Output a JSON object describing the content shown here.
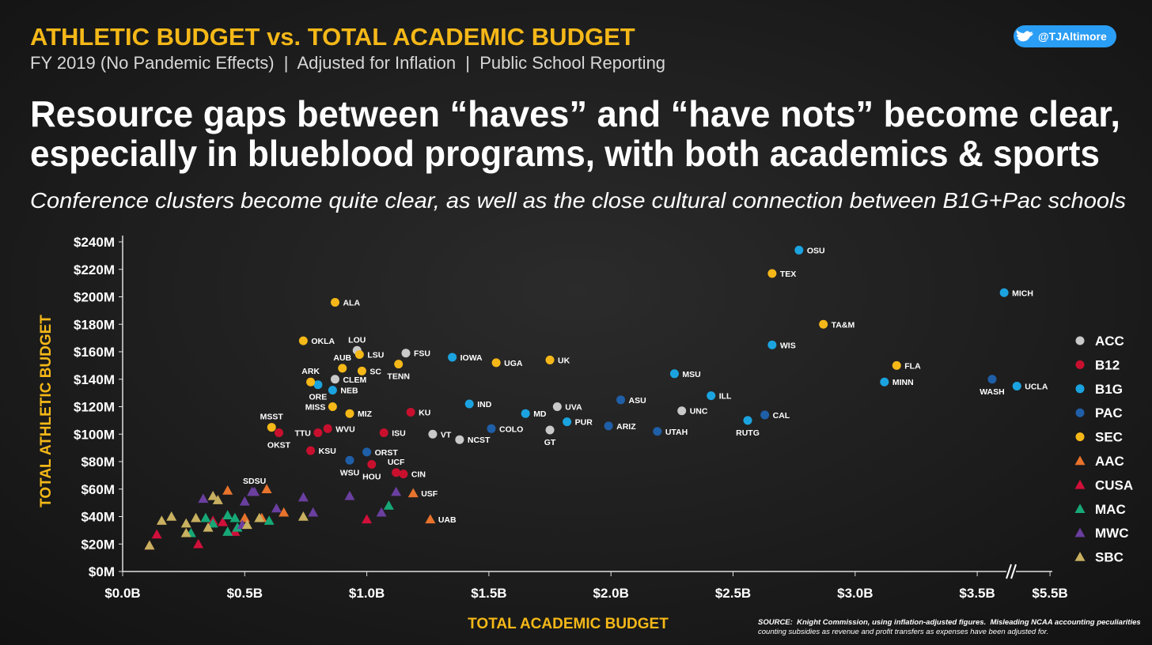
{
  "chart_data": {
    "type": "scatter",
    "title": "ATHLETIC BUDGET vs. TOTAL ACADEMIC BUDGET",
    "subtitle": "FY 2019 (No Pandemic Effects)  |  Adjusted for Inflation  |  Public School Reporting",
    "headline": [
      "Resource gaps between “haves” and “have nots” become clear,",
      "especially in blueblood programs, with both academics & sports"
    ],
    "deck": "Conference clusters become quite clear, as well as the close cultural connection between B1G+Pac schools",
    "handle": "@TJAltimore",
    "xlabel": "TOTAL ACADEMIC BUDGET",
    "ylabel": "TOTAL ATHLETIC BUDGET",
    "source": [
      "SOURCE:  Knight Commission, using inflation-adjusted figures.  Misleading NCAA accounting peculiarities",
      "counting subsidies as revenue and profit transfers as expenses have been adjusted for."
    ],
    "xlim": [
      0,
      5.5
    ],
    "xticks": [
      {
        "value": 0,
        "label": "$0.0B"
      },
      {
        "value": 0.5,
        "label": "$0.5B"
      },
      {
        "value": 1.0,
        "label": "$1.0B"
      },
      {
        "value": 1.5,
        "label": "$1.5B"
      },
      {
        "value": 2.0,
        "label": "$2.0B"
      },
      {
        "value": 2.5,
        "label": "$2.5B"
      },
      {
        "value": 3.0,
        "label": "$3.0B"
      },
      {
        "value": 3.5,
        "label": "$3.5B"
      },
      {
        "value": 5.5,
        "label": "$5.5B"
      }
    ],
    "ylim": [
      0,
      240
    ],
    "yticks": [
      {
        "value": 0,
        "label": "$0M"
      },
      {
        "value": 20,
        "label": "$20M"
      },
      {
        "value": 40,
        "label": "$40M"
      },
      {
        "value": 60,
        "label": "$60M"
      },
      {
        "value": 80,
        "label": "$80M"
      },
      {
        "value": 100,
        "label": "$100M"
      },
      {
        "value": 120,
        "label": "$120M"
      },
      {
        "value": 140,
        "label": "$140M"
      },
      {
        "value": 160,
        "label": "$160M"
      },
      {
        "value": 180,
        "label": "$180M"
      },
      {
        "value": 200,
        "label": "$200M"
      },
      {
        "value": 220,
        "label": "$220M"
      },
      {
        "value": 240,
        "label": "$240M"
      }
    ],
    "grid": false,
    "legend": "right",
    "series": [
      {
        "name": "ACC",
        "color": "#c9c9c9",
        "marker": "circle",
        "x": [
          0.96,
          1.16,
          0.87,
          1.27,
          1.38,
          1.78,
          1.75,
          2.29
        ],
        "values": [
          161,
          159,
          140,
          100,
          96,
          120,
          103,
          117
        ],
        "labels": [
          "LOU",
          "FSU",
          "CLEM",
          "VT",
          "NCST",
          "UVA",
          "GT",
          "UNC"
        ]
      },
      {
        "name": "B12",
        "color": "#c8102e",
        "marker": "circle",
        "x": [
          0.64,
          0.8,
          0.84,
          0.77,
          1.07,
          1.18,
          1.02,
          1.12,
          1.15
        ],
        "values": [
          101,
          101,
          104,
          88,
          101,
          116,
          78,
          72,
          71
        ],
        "labels": [
          "OKST",
          "TTU",
          "WVU",
          "KSU",
          "ISU",
          "KU",
          "HOU",
          "UCF",
          "CIN"
        ]
      },
      {
        "name": "B1G",
        "color": "#1ba3e0",
        "marker": "circle",
        "x": [
          2.77,
          4.24,
          2.66,
          2.26,
          2.41,
          3.12,
          2.56,
          1.35,
          1.42,
          1.65,
          1.82,
          0.86,
          4.59,
          0.8
        ],
        "values": [
          234,
          203,
          165,
          144,
          128,
          138,
          110,
          156,
          122,
          115,
          109,
          132,
          135,
          136
        ],
        "labels": [
          "OSU",
          "MICH",
          "WIS",
          "MSU",
          "ILL",
          "MINN",
          "RUTG",
          "IOWA",
          "IND",
          "MD",
          "PUR",
          "NEB",
          "UCLA",
          "ORE"
        ]
      },
      {
        "name": "PAC",
        "color": "#1f5fa8",
        "marker": "circle",
        "x": [
          3.91,
          2.04,
          1.99,
          2.19,
          2.63,
          1.51,
          1.0,
          0.93
        ],
        "values": [
          140,
          125,
          106,
          102,
          114,
          104,
          87,
          81
        ],
        "labels": [
          "WASH",
          "ASU",
          "ARIZ",
          "UTAH",
          "CAL",
          "COLO",
          "ORST",
          "WSU"
        ]
      },
      {
        "name": "SEC",
        "color": "#f5b818",
        "marker": "circle",
        "x": [
          2.66,
          2.87,
          3.17,
          0.87,
          0.74,
          0.97,
          0.9,
          0.98,
          1.13,
          1.53,
          1.75,
          0.77,
          0.86,
          0.93,
          0.61
        ],
        "values": [
          217,
          180,
          150,
          196,
          168,
          158,
          148,
          146,
          151,
          152,
          154,
          138,
          120,
          115,
          105
        ],
        "labels": [
          "TEX",
          "TA&M",
          "FLA",
          "ALA",
          "OKLA",
          "LSU",
          "AUB",
          "SC",
          "TENN",
          "UGA",
          "UK",
          "ARK",
          "MISS",
          "MIZ",
          "MSST"
        ]
      },
      {
        "name": "AAC",
        "color": "#e8732c",
        "marker": "triangle",
        "x": [
          0.43,
          0.59,
          0.66,
          0.5,
          0.57,
          1.19,
          1.26
        ],
        "values": [
          59,
          60,
          43,
          39,
          39,
          57,
          38
        ],
        "labels": [
          null,
          null,
          null,
          null,
          null,
          "USF",
          "UAB"
        ]
      },
      {
        "name": "CUSA",
        "color": "#d0103a",
        "marker": "triangle",
        "x": [
          0.11,
          0.14,
          0.31,
          0.37,
          0.41,
          0.46,
          1.0
        ],
        "values": [
          19,
          27,
          20,
          37,
          36,
          29,
          38
        ],
        "labels": [
          null,
          null,
          null,
          null,
          null,
          null,
          null
        ]
      },
      {
        "name": "MAC",
        "color": "#17a877",
        "marker": "triangle",
        "x": [
          0.28,
          0.34,
          0.37,
          0.43,
          0.43,
          0.46,
          0.47,
          0.6,
          1.09
        ],
        "values": [
          28,
          39,
          35,
          41,
          29,
          39,
          32,
          37,
          48
        ],
        "labels": [
          null,
          null,
          null,
          null,
          null,
          null,
          null,
          null,
          null
        ]
      },
      {
        "name": "MWC",
        "color": "#6a3fa0",
        "marker": "triangle",
        "x": [
          0.33,
          0.53,
          0.54,
          0.5,
          0.63,
          0.74,
          0.78,
          0.93,
          1.12,
          1.06,
          0.49
        ],
        "values": [
          53,
          58,
          58,
          51,
          46,
          54,
          43,
          55,
          58,
          43,
          34
        ],
        "labels": [
          null,
          null,
          "SDSU",
          null,
          null,
          null,
          null,
          null,
          null,
          null,
          null
        ]
      },
      {
        "name": "SBC",
        "color": "#c8b060",
        "marker": "triangle",
        "x": [
          0.11,
          0.16,
          0.2,
          0.26,
          0.26,
          0.3,
          0.35,
          0.37,
          0.39,
          0.51,
          0.56,
          0.74
        ],
        "values": [
          19,
          37,
          40,
          35,
          28,
          39,
          32,
          55,
          52,
          34,
          39,
          40
        ],
        "labels": [
          null,
          null,
          null,
          null,
          null,
          null,
          null,
          null,
          null,
          null,
          null,
          null
        ]
      }
    ]
  }
}
